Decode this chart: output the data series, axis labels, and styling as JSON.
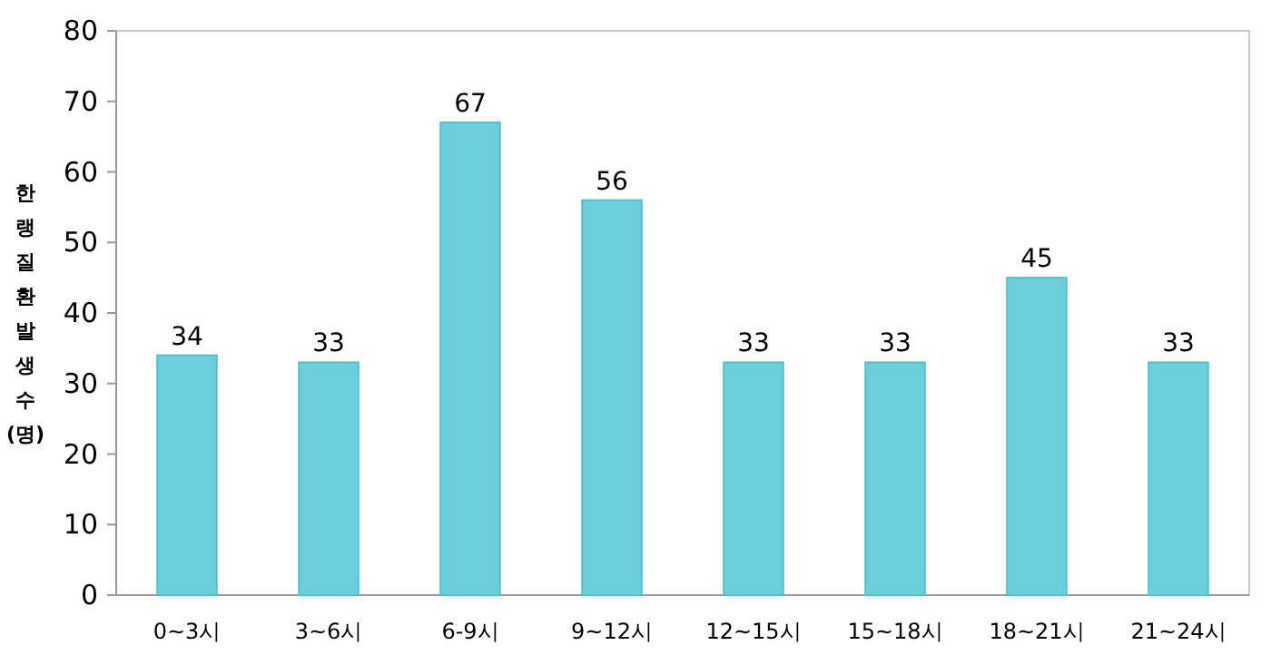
{
  "chart_data": {
    "type": "bar",
    "ylabel": "한랭질환발생수(명)",
    "categories": [
      "0~3시",
      "3~6시",
      "6-9시",
      "9~12시",
      "12~15시",
      "15~18시",
      "18~21시",
      "21~24시"
    ],
    "values": [
      34,
      33,
      67,
      56,
      33,
      33,
      45,
      33
    ],
    "color": "#6dcfdb",
    "ylim": [
      0,
      80
    ],
    "yticks": [
      0,
      10,
      20,
      30,
      40,
      50,
      60,
      70,
      80
    ],
    "data_labels": true,
    "grid": false
  }
}
